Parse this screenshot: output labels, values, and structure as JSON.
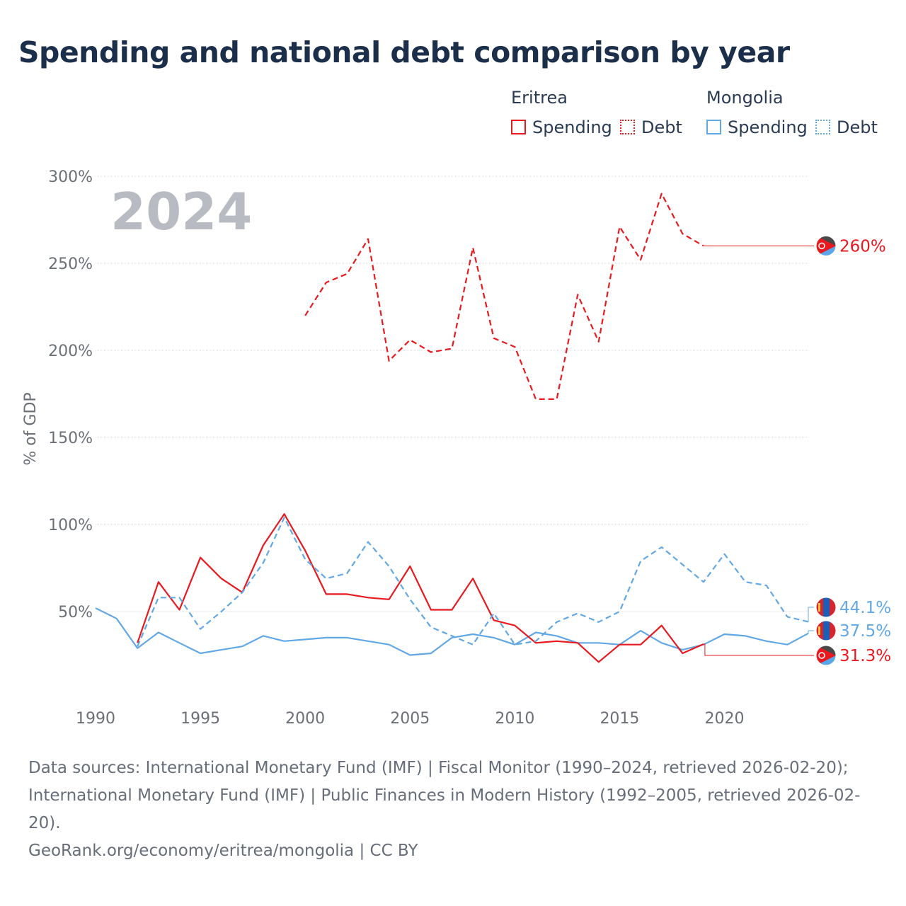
{
  "title": "Spending and national debt comparison by year",
  "legend": {
    "groups": [
      {
        "country": "Eritrea",
        "items": [
          {
            "label": "Spending",
            "style": "solid",
            "color": "#e8191f"
          },
          {
            "label": "Debt",
            "style": "dotted",
            "color": "#e8191f"
          }
        ]
      },
      {
        "country": "Mongolia",
        "items": [
          {
            "label": "Spending",
            "style": "solid",
            "color": "#62a8e5"
          },
          {
            "label": "Debt",
            "style": "dotted",
            "color": "#62a8e5"
          }
        ]
      }
    ]
  },
  "year_label": "2024",
  "footer": {
    "sources": "Data sources: International Monetary Fund (IMF) | Fiscal Monitor (1990–2024, retrieved 2026-02-20); International Monetary Fund (IMF) | Public Finances in Modern History (1992–2005, retrieved 2026-02-20).",
    "credit": "GeoRank.org/economy/eritrea/mongolia | CC BY"
  },
  "chart_data": {
    "type": "line",
    "ylabel": "% of GDP",
    "xlabel": "",
    "xlim": [
      1990,
      2024
    ],
    "ylim": [
      0,
      300
    ],
    "yticks": [
      50,
      100,
      150,
      200,
      250,
      300
    ],
    "ytick_labels": [
      "50%",
      "100%",
      "150%",
      "200%",
      "250%",
      "300%"
    ],
    "xticks": [
      1990,
      1995,
      2000,
      2005,
      2010,
      2015,
      2020
    ],
    "xtick_labels": [
      "1990",
      "1995",
      "2000",
      "2005",
      "2010",
      "2015",
      "2020"
    ],
    "series": [
      {
        "name": "Eritrea Debt",
        "country": "Eritrea",
        "metric": "Debt",
        "color": "#e8191f",
        "dash": true,
        "x": [
          2000,
          2001,
          2002,
          2003,
          2004,
          2005,
          2006,
          2007,
          2008,
          2009,
          2010,
          2011,
          2012,
          2013,
          2014,
          2015,
          2016,
          2017,
          2018,
          2019
        ],
        "values": [
          220,
          239,
          244,
          264,
          194,
          206,
          199,
          201,
          259,
          207,
          202,
          172,
          172,
          232,
          205,
          271,
          252,
          290,
          267,
          260
        ],
        "end_label": "260%"
      },
      {
        "name": "Eritrea Spending",
        "country": "Eritrea",
        "metric": "Spending",
        "color": "#e8191f",
        "dash": false,
        "x": [
          1992,
          1993,
          1994,
          1995,
          1996,
          1997,
          1998,
          1999,
          2000,
          2001,
          2002,
          2003,
          2004,
          2005,
          2006,
          2007,
          2008,
          2009,
          2010,
          2011,
          2012,
          2013,
          2014,
          2015,
          2016,
          2017,
          2018,
          2019
        ],
        "values": [
          32,
          67,
          51,
          81,
          69,
          61,
          88,
          106,
          85,
          60,
          60,
          58,
          57,
          76,
          51,
          51,
          69,
          45,
          42,
          32,
          33,
          32,
          21,
          31,
          31,
          42,
          26,
          31.3
        ],
        "end_label": "31.3%"
      },
      {
        "name": "Mongolia Debt",
        "country": "Mongolia",
        "metric": "Debt",
        "color": "#62a8e5",
        "dash": true,
        "x": [
          1992,
          1993,
          1994,
          1995,
          1996,
          1997,
          1998,
          1999,
          2000,
          2001,
          2002,
          2003,
          2004,
          2005,
          2006,
          2007,
          2008,
          2009,
          2010,
          2011,
          2012,
          2013,
          2014,
          2015,
          2016,
          2017,
          2018,
          2019,
          2020,
          2021,
          2022,
          2023,
          2024
        ],
        "values": [
          30,
          58,
          58,
          40,
          50,
          61,
          78,
          104,
          80,
          69,
          72,
          90,
          76,
          57,
          41,
          36,
          31,
          49,
          31,
          33,
          44,
          49,
          44,
          50,
          79,
          87,
          77,
          67,
          83,
          67,
          65,
          47,
          44.1
        ],
        "end_label": "44.1%"
      },
      {
        "name": "Mongolia Spending",
        "country": "Mongolia",
        "metric": "Spending",
        "color": "#62a8e5",
        "dash": false,
        "x": [
          1990,
          1991,
          1992,
          1993,
          1994,
          1995,
          1996,
          1997,
          1998,
          1999,
          2000,
          2001,
          2002,
          2003,
          2004,
          2005,
          2006,
          2007,
          2008,
          2009,
          2010,
          2011,
          2012,
          2013,
          2014,
          2015,
          2016,
          2017,
          2018,
          2019,
          2020,
          2021,
          2022,
          2023,
          2024
        ],
        "values": [
          52,
          46,
          29,
          38,
          32,
          26,
          28,
          30,
          36,
          33,
          34,
          35,
          35,
          33,
          31,
          25,
          26,
          35,
          37,
          35,
          31,
          38,
          36,
          32,
          32,
          31,
          39,
          32,
          28,
          31,
          37,
          36,
          33,
          31,
          37.5
        ],
        "end_label": "37.5%"
      }
    ]
  }
}
